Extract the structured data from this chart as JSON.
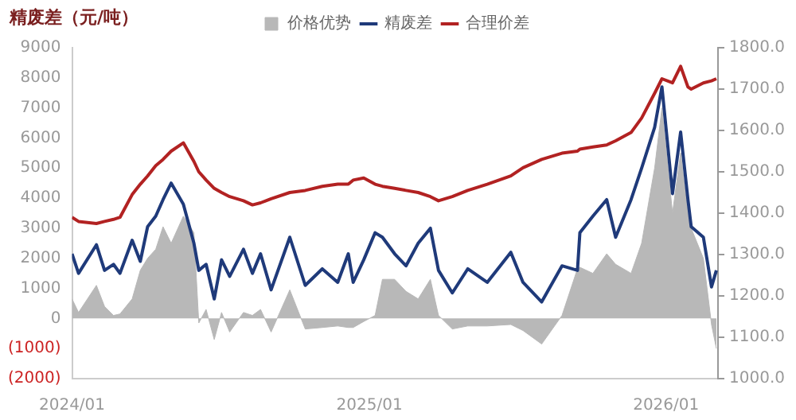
{
  "chart_data": {
    "type": "line",
    "ylabel": "精废差（元/吨）",
    "x": [
      "2024-01-01",
      "2024-01-09",
      "2024-01-31",
      "2024-02-10",
      "2024-02-21",
      "2024-02-29",
      "2024-03-15",
      "2024-03-25",
      "2024-04-03",
      "2024-04-13",
      "2024-04-22",
      "2024-05-02",
      "2024-05-17",
      "2024-05-30",
      "2024-06-05",
      "2024-06-14",
      "2024-06-24",
      "2024-07-03",
      "2024-07-13",
      "2024-07-30",
      "2024-08-10",
      "2024-08-20",
      "2024-09-02",
      "2024-09-25",
      "2024-10-14",
      "2024-11-04",
      "2024-11-23",
      "2024-12-06",
      "2024-12-12",
      "2024-12-25",
      "2025-01-08",
      "2025-01-17",
      "2025-02-01",
      "2025-02-15",
      "2025-03-02",
      "2025-03-17",
      "2025-03-27",
      "2025-04-13",
      "2025-05-02",
      "2025-05-26",
      "2025-06-24",
      "2025-07-09",
      "2025-08-01",
      "2025-08-26",
      "2025-09-14",
      "2025-09-17",
      "2025-10-03",
      "2025-10-20",
      "2025-10-31",
      "2025-11-19",
      "2025-12-02",
      "2025-12-18",
      "2025-12-27",
      "2026-01-09",
      "2026-01-19",
      "2026-01-28",
      "2026-02-01",
      "2026-02-16",
      "2026-02-26",
      "2026-03-04"
    ],
    "series": [
      {
        "name": "价格优势",
        "type": "area",
        "color": "#b8b8b8",
        "values": [
          650,
          200,
          1100,
          400,
          100,
          150,
          650,
          1600,
          2000,
          2300,
          3050,
          2500,
          3400,
          2850,
          -150,
          300,
          -700,
          200,
          -450,
          200,
          100,
          300,
          -450,
          950,
          -350,
          -300,
          -250,
          -300,
          -300,
          -100,
          100,
          1300,
          1300,
          900,
          650,
          1300,
          100,
          -350,
          -250,
          -250,
          -200,
          -400,
          -850,
          100,
          1650,
          1700,
          1500,
          2150,
          1800,
          1500,
          2500,
          5000,
          7000,
          3500,
          5500,
          3500,
          3000,
          2000,
          -200,
          -1000
        ]
      },
      {
        "name": "精废差",
        "color": "#1f3a7a",
        "values": [
          2150,
          1500,
          2450,
          1600,
          1800,
          1500,
          2600,
          1900,
          3050,
          3400,
          3950,
          4500,
          3800,
          2500,
          1600,
          1800,
          650,
          1950,
          1400,
          2300,
          1500,
          2150,
          950,
          2700,
          1100,
          1650,
          1200,
          2150,
          1200,
          1950,
          2850,
          2700,
          2150,
          1750,
          2500,
          3000,
          1600,
          850,
          1650,
          1200,
          2200,
          1200,
          550,
          1750,
          1600,
          2850,
          3400,
          3950,
          2700,
          3950,
          5000,
          6350,
          7700,
          4150,
          6200,
          3950,
          3050,
          2700,
          1050,
          1600
        ]
      },
      {
        "name": "合理价差",
        "axis": "y2",
        "color": "#b22222",
        "values": [
          1390,
          1380,
          1375,
          1380,
          1385,
          1390,
          1445,
          1470,
          1490,
          1515,
          1530,
          1550,
          1570,
          1525,
          1500,
          1480,
          1460,
          1450,
          1440,
          1430,
          1420,
          1425,
          1435,
          1450,
          1455,
          1465,
          1470,
          1470,
          1480,
          1485,
          1470,
          1465,
          1460,
          1455,
          1450,
          1440,
          1430,
          1440,
          1455,
          1470,
          1490,
          1510,
          1530,
          1545,
          1550,
          1555,
          1560,
          1565,
          1575,
          1595,
          1630,
          1690,
          1725,
          1715,
          1755,
          1705,
          1700,
          1715,
          1720,
          1725
        ]
      }
    ],
    "xlim": [
      "2024-01-01",
      "2026-03-06"
    ],
    "xticks": [
      {
        "value": "2024-01-01",
        "label": "2024/01"
      },
      {
        "value": "2025-01-01",
        "label": "2025/01"
      },
      {
        "value": "2026-01-01",
        "label": "2026/01"
      }
    ],
    "ylim": [
      -2000,
      9000
    ],
    "yticks": [
      {
        "value": -2000,
        "label": "(2000)"
      },
      {
        "value": -1000,
        "label": "(1000)"
      },
      0,
      1000,
      2000,
      3000,
      4000,
      5000,
      6000,
      7000,
      8000,
      9000
    ],
    "y2lim": [
      1000,
      1800
    ],
    "y2ticks": [
      {
        "value": 1000,
        "label": "1000.0"
      },
      {
        "value": 1100,
        "label": "1100.0"
      },
      {
        "value": 1200,
        "label": "1200.0"
      },
      {
        "value": 1300,
        "label": "1300.0"
      },
      {
        "value": 1400,
        "label": "1400.0"
      },
      {
        "value": 1500,
        "label": "1500.0"
      },
      {
        "value": 1600,
        "label": "1600.0"
      },
      {
        "value": 1700,
        "label": "1700.0"
      },
      {
        "value": 1800,
        "label": "1800.0"
      }
    ],
    "legend": "top",
    "grid": false
  }
}
